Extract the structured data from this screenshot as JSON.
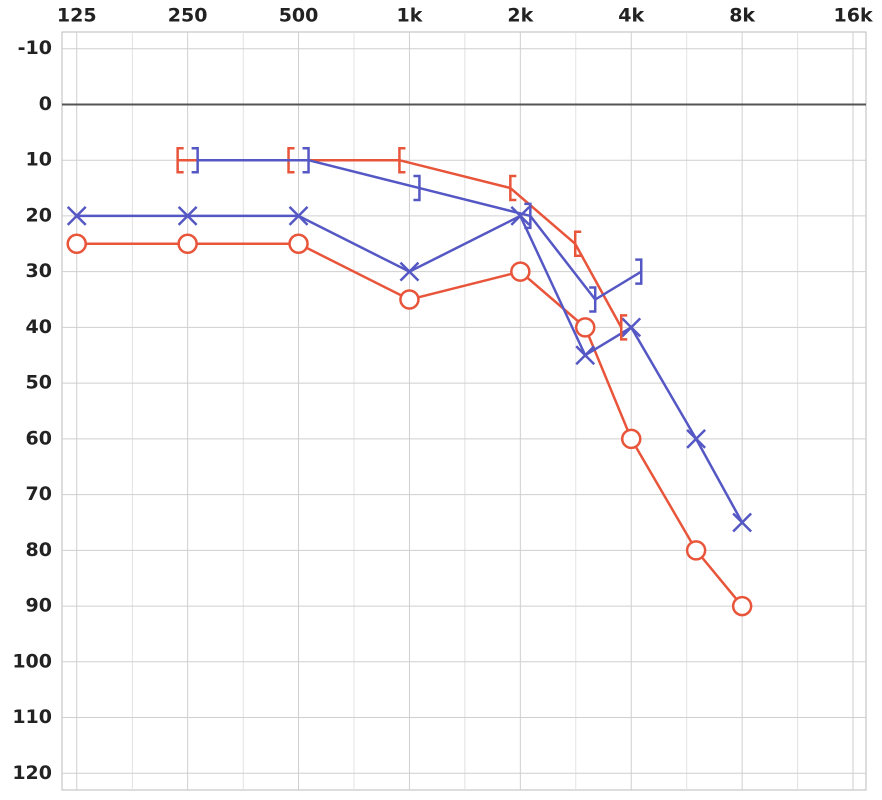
{
  "chart_data": {
    "type": "audiogram",
    "xscale": "log",
    "xlim": [
      114,
      17350
    ],
    "xticks": [
      125,
      250,
      500,
      {
        "value": 1000,
        "label": "1k"
      },
      {
        "value": 2000,
        "label": "2k"
      },
      {
        "value": 4000,
        "label": "4k"
      },
      {
        "value": 8000,
        "label": "8k"
      },
      {
        "value": 16000,
        "label": "16k"
      }
    ],
    "xminorticks": [
      177,
      354,
      707,
      1414,
      2828,
      5657,
      11314
    ],
    "ylim": [
      -13,
      123
    ],
    "y_reversed": true,
    "yticks": [
      -10,
      0,
      10,
      20,
      30,
      40,
      50,
      60,
      70,
      80,
      90,
      100,
      110,
      120
    ],
    "grid": true,
    "zero_line": true,
    "series": [
      {
        "marker": "circle",
        "color": "#e8553a",
        "x": [
          125,
          250,
          500,
          1000,
          2000,
          3000,
          4000,
          6000,
          8000
        ],
        "values": [
          25,
          25,
          25,
          35,
          30,
          40,
          60,
          80,
          90
        ]
      },
      {
        "marker": "cross",
        "color": "#5558c4",
        "x": [
          125,
          250,
          500,
          1000,
          2000,
          3000,
          4000,
          6000,
          8000
        ],
        "values": [
          20,
          20,
          20,
          30,
          20,
          45,
          40,
          60,
          75
        ]
      },
      {
        "marker": "bracket-left",
        "color": "#e8553a",
        "x": [
          250,
          500,
          1000,
          2000,
          3000,
          4000
        ],
        "values": [
          10,
          10,
          10,
          15,
          25,
          40
        ]
      },
      {
        "marker": "bracket-right",
        "color": "#5558c4",
        "x": [
          250,
          500,
          1000,
          2000,
          3000,
          4000
        ],
        "values": [
          10,
          10,
          15,
          20,
          35,
          30
        ]
      }
    ]
  }
}
